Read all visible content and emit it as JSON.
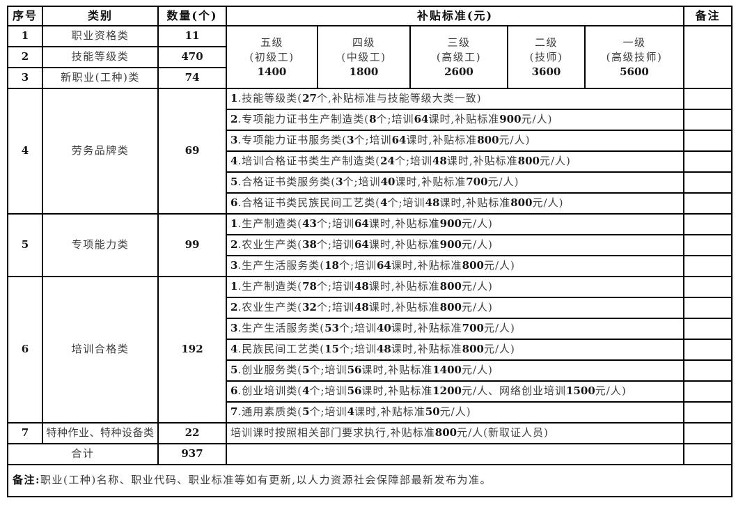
{
  "colors": {
    "background": "#ffffff",
    "border": "#000000",
    "text": "#3e3e3e",
    "bold_text": "#161616"
  },
  "header": {
    "col_seq": "序号",
    "col_category": "类别",
    "col_count": "数量(个)",
    "col_subsidy": "补贴标准(元)",
    "col_remark": "备注"
  },
  "levels": [
    {
      "grade": "五级",
      "title": "(初级工)",
      "amount": "1400"
    },
    {
      "grade": "四级",
      "title": "(中级工)",
      "amount": "1800"
    },
    {
      "grade": "三级",
      "title": "(高级工)",
      "amount": "2600"
    },
    {
      "grade": "二级",
      "title": "(技师)",
      "amount": "3600"
    },
    {
      "grade": "一级",
      "title": "(高级技师)",
      "amount": "5600"
    }
  ],
  "simple_rows": [
    {
      "seq": "1",
      "category": "职业资格类",
      "count": "11"
    },
    {
      "seq": "2",
      "category": "技能等级类",
      "count": "470"
    },
    {
      "seq": "3",
      "category": "新职业(工种)类",
      "count": "74"
    }
  ],
  "group_rows": [
    {
      "seq": "4",
      "category": "劳务品牌类",
      "count": "69",
      "items": [
        "1.技能等级类(27个,补贴标准与技能等级大类一致)",
        "2.专项能力证书生产制造类(8个;培训64课时,补贴标准900元/人)",
        "3.专项能力证书服务类(3个;培训64课时,补贴标准800元/人)",
        "4.培训合格证书类生产制造类(24个;培训48课时,补贴标准800元/人)",
        "5.合格证书类服务类(3个;培训40课时,补贴标准700元/人)",
        "6.合格证书类民族民间工艺类(4个;培训48课时,补贴标准800元/人)"
      ]
    },
    {
      "seq": "5",
      "category": "专项能力类",
      "count": "99",
      "items": [
        "1.生产制造类(43个;培训64课时,补贴标准900元/人)",
        "2.农业生产类(38个;培训64课时,补贴标准900元/人)",
        "3.生产生活服务类(18个;培训64课时,补贴标准800元/人)"
      ]
    },
    {
      "seq": "6",
      "category": "培训合格类",
      "count": "192",
      "items": [
        "1.生产制造类(78个;培训48课时,补贴标准800元/人)",
        "2.农业生产类(32个;培训48课时,补贴标准800元/人)",
        "3.生产生活服务类(53个;培训40课时,补贴标准700元/人)",
        "4.民族民间工艺类(15个;培训48课时,补贴标准800元/人)",
        "5.创业服务类(5个;培训56课时,补贴标准1400元/人)",
        "6.创业培训类(4个;培训56课时,补贴标准1200元/人、网络创业培训1500元/人)",
        "7.通用素质类(5个;培训4课时,补贴标准50元/人)"
      ]
    }
  ],
  "special_row": {
    "seq": "7",
    "category": "特种作业、特种设备类",
    "count": "22",
    "detail": "培训课时按照相关部门要求执行,补贴标准800元/人(新取证人员)"
  },
  "total_row": {
    "label": "合计",
    "count": "937"
  },
  "footnote": {
    "label": "备注:",
    "text": "职业(工种)名称、职业代码、职业标准等如有更新,以人力资源社会保障部最新发布为准。"
  }
}
